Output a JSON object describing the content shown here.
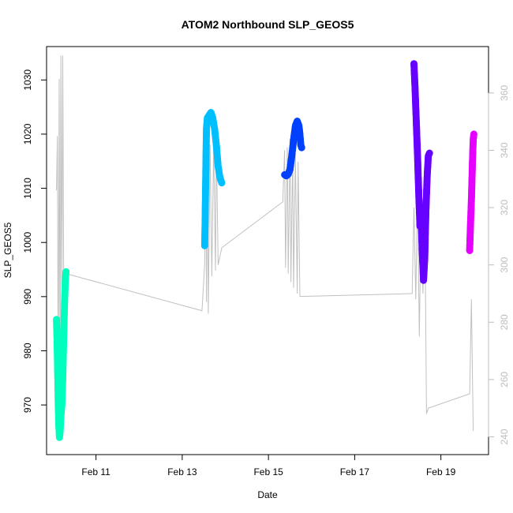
{
  "chart_data": {
    "type": "scatter",
    "title": "ATOM2 Northbound SLP_GEOS5",
    "xlabel": "Date",
    "ylabel": "SLP_GEOS5",
    "x_ticks": [
      "Feb 11",
      "Feb 13",
      "Feb 15",
      "Feb 17",
      "Feb 19"
    ],
    "y_ticks": [
      970,
      980,
      990,
      1000,
      1010,
      1020,
      1030
    ],
    "y2_ticks": [
      240,
      260,
      280,
      300,
      320,
      340,
      360
    ],
    "xlim": [
      "2010-02-10 00:00",
      "2010-02-19 23:00"
    ],
    "ylim": [
      962,
      1035
    ],
    "y2lim": [
      236,
      374
    ],
    "grid": false,
    "colors": {
      "axis": "#000000",
      "right_axis": "#bdbdbd",
      "grey_series": "#c0c0c0"
    },
    "series": [
      {
        "color": "#00ffbf",
        "points": [
          [
            "2010-02-10 02:00",
            985.8
          ],
          [
            "2010-02-10 02:20",
            982.0
          ],
          [
            "2010-02-10 02:40",
            976.0
          ],
          [
            "2010-02-10 03:00",
            970.0
          ],
          [
            "2010-02-10 03:20",
            966.0
          ],
          [
            "2010-02-10 03:40",
            964.0
          ],
          [
            "2010-02-10 04:00",
            965.0
          ],
          [
            "2010-02-10 04:30",
            968.0
          ],
          [
            "2010-02-10 05:00",
            970.0
          ],
          [
            "2010-02-10 05:30",
            975.0
          ],
          [
            "2010-02-10 06:00",
            982.0
          ],
          [
            "2010-02-10 06:30",
            989.0
          ],
          [
            "2010-02-10 07:00",
            993.5
          ],
          [
            "2010-02-10 07:20",
            994.6
          ]
        ]
      },
      {
        "color": "#00bfff",
        "points": [
          [
            "2010-02-13 12:30",
            999.4
          ],
          [
            "2010-02-13 12:45",
            1004.0
          ],
          [
            "2010-02-13 13:00",
            1010.0
          ],
          [
            "2010-02-13 13:15",
            1016.0
          ],
          [
            "2010-02-13 13:30",
            1021.0
          ],
          [
            "2010-02-13 14:00",
            1023.0
          ],
          [
            "2010-02-13 15:00",
            1023.5
          ],
          [
            "2010-02-13 16:00",
            1024.0
          ],
          [
            "2010-02-13 17:00",
            1023.0
          ],
          [
            "2010-02-13 18:00",
            1021.0
          ],
          [
            "2010-02-13 19:00",
            1018.0
          ],
          [
            "2010-02-13 20:00",
            1014.0
          ],
          [
            "2010-02-13 21:00",
            1012.0
          ],
          [
            "2010-02-13 22:00",
            1011.0
          ]
        ]
      },
      {
        "color": "#0040ff",
        "points": [
          [
            "2010-02-15 09:00",
            1012.5
          ],
          [
            "2010-02-15 10:00",
            1012.3
          ],
          [
            "2010-02-15 11:00",
            1012.6
          ],
          [
            "2010-02-15 12:00",
            1013.5
          ],
          [
            "2010-02-15 13:00",
            1016.0
          ],
          [
            "2010-02-15 14:00",
            1019.0
          ],
          [
            "2010-02-15 15:00",
            1021.5
          ],
          [
            "2010-02-15 16:00",
            1022.4
          ],
          [
            "2010-02-15 17:00",
            1021.5
          ],
          [
            "2010-02-15 17:30",
            1020.0
          ],
          [
            "2010-02-15 18:00",
            1018.0
          ],
          [
            "2010-02-15 18:30",
            1017.5
          ]
        ]
      },
      {
        "color": "#6600ff",
        "points": [
          [
            "2010-02-18 09:00",
            1033.0
          ],
          [
            "2010-02-18 09:40",
            1028.0
          ],
          [
            "2010-02-18 10:20",
            1022.0
          ],
          [
            "2010-02-18 11:00",
            1016.0
          ],
          [
            "2010-02-18 11:40",
            1009.0
          ],
          [
            "2010-02-18 12:20",
            1003.0
          ],
          [
            "2010-02-18 13:00",
            1005.0
          ],
          [
            "2010-02-18 13:40",
            998.0
          ],
          [
            "2010-02-18 14:20",
            993.0
          ],
          [
            "2010-02-18 15:00",
            997.0
          ],
          [
            "2010-02-18 15:40",
            1006.0
          ],
          [
            "2010-02-18 16:20",
            1012.0
          ],
          [
            "2010-02-18 17:00",
            1016.0
          ],
          [
            "2010-02-18 17:40",
            1016.5
          ]
        ]
      },
      {
        "color": "#e600ff",
        "points": [
          [
            "2010-02-19 16:00",
            998.5
          ],
          [
            "2010-02-19 16:20",
            1002.0
          ],
          [
            "2010-02-19 16:40",
            1005.0
          ],
          [
            "2010-02-19 17:00",
            1008.0
          ],
          [
            "2010-02-19 17:20",
            1012.0
          ],
          [
            "2010-02-19 17:40",
            1016.0
          ],
          [
            "2010-02-19 18:00",
            1019.0
          ],
          [
            "2010-02-19 18:20",
            1020.0
          ]
        ]
      }
    ],
    "grey_series_right_axis": [
      [
        "2010-02-10 02:00",
        326
      ],
      [
        "2010-02-10 02:30",
        345
      ],
      [
        "2010-02-10 03:00",
        253
      ],
      [
        "2010-02-10 03:30",
        365
      ],
      [
        "2010-02-10 04:00",
        257
      ],
      [
        "2010-02-10 04:30",
        373
      ],
      [
        "2010-02-10 05:00",
        283
      ],
      [
        "2010-02-10 05:30",
        373
      ],
      [
        "2010-02-10 06:00",
        294
      ],
      [
        "2010-02-10 07:00",
        297
      ],
      [
        "2010-02-13 11:00",
        284
      ],
      [
        "2010-02-13 12:30",
        300
      ],
      [
        "2010-02-13 13:00",
        350
      ],
      [
        "2010-02-13 13:30",
        287
      ],
      [
        "2010-02-13 14:00",
        345
      ],
      [
        "2010-02-13 14:30",
        283
      ],
      [
        "2010-02-13 15:30",
        342
      ],
      [
        "2010-02-13 16:30",
        296
      ],
      [
        "2010-02-13 17:30",
        342
      ],
      [
        "2010-02-13 18:30",
        298
      ],
      [
        "2010-02-13 19:00",
        345
      ],
      [
        "2010-02-13 20:00",
        300
      ],
      [
        "2010-02-13 22:00",
        306
      ],
      [
        "2010-02-15 08:00",
        322
      ],
      [
        "2010-02-15 09:00",
        340
      ],
      [
        "2010-02-15 09:30",
        299
      ],
      [
        "2010-02-15 10:30",
        341
      ],
      [
        "2010-02-15 11:00",
        297
      ],
      [
        "2010-02-15 12:00",
        344
      ],
      [
        "2010-02-15 12:30",
        294
      ],
      [
        "2010-02-15 13:30",
        340
      ],
      [
        "2010-02-15 14:00",
        292
      ],
      [
        "2010-02-15 15:00",
        339
      ],
      [
        "2010-02-15 16:00",
        290
      ],
      [
        "2010-02-15 16:30",
        336
      ],
      [
        "2010-02-15 17:30",
        289
      ],
      [
        "2010-02-18 08:00",
        290
      ],
      [
        "2010-02-18 09:00",
        320
      ],
      [
        "2010-02-18 10:00",
        288
      ],
      [
        "2010-02-18 11:00",
        326
      ],
      [
        "2010-02-18 12:00",
        275
      ],
      [
        "2010-02-18 13:00",
        318
      ],
      [
        "2010-02-18 14:00",
        290
      ],
      [
        "2010-02-18 15:00",
        322
      ],
      [
        "2010-02-18 16:00",
        248
      ],
      [
        "2010-02-18 17:00",
        250
      ],
      [
        "2010-02-19 16:00",
        255
      ],
      [
        "2010-02-19 17:00",
        288
      ],
      [
        "2010-02-19 18:00",
        242
      ]
    ]
  }
}
